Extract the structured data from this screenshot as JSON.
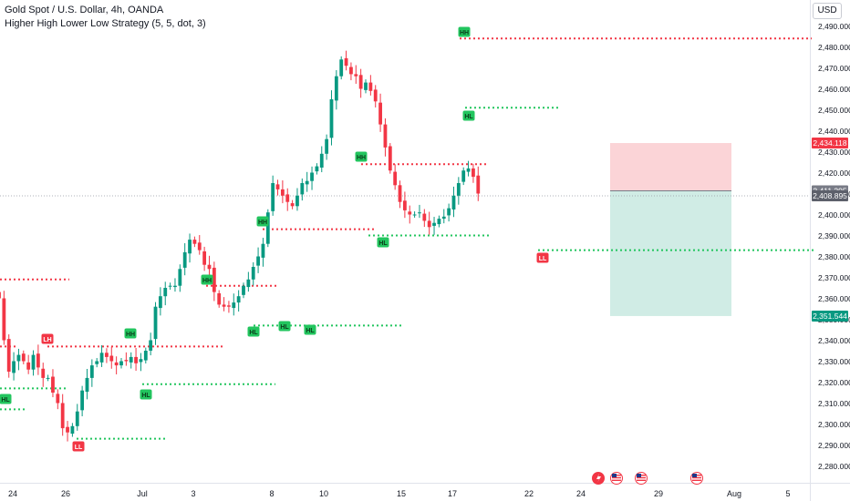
{
  "header": {
    "symbol_title": "Gold Spot / U.S. Dollar, 4h, OANDA",
    "indicator_title": "Higher High Lower Low Strategy (5, 5, dot, 3)",
    "currency": "USD"
  },
  "colors": {
    "up": "#089981",
    "down": "#f23645",
    "stop_zone": "#f9c5ca",
    "target_zone": "#c8e9e1",
    "axis_text": "#131722"
  },
  "event_icons": [
    "lightning-icon",
    "us-flag-icon",
    "us-flag-icon",
    "us-flag-icon"
  ],
  "chart_data": {
    "type": "candlestick",
    "x_ticks": [
      "24",
      "26",
      "Jul",
      "3",
      "8",
      "10",
      "15",
      "17",
      "22",
      "24",
      "29",
      "Aug",
      "5"
    ],
    "y_ticks": [
      "2,490.000",
      "2,480.000",
      "2,470.000",
      "2,460.000",
      "2,450.000",
      "2,440.000",
      "2,430.000",
      "2,420.000",
      "2,410.000",
      "2,400.000",
      "2,390.000",
      "2,380.000",
      "2,370.000",
      "2,360.000",
      "2,350.000",
      "2,340.000",
      "2,330.000",
      "2,320.000",
      "2,310.000",
      "2,300.000",
      "2,290.000",
      "2,280.000"
    ],
    "ylim": [
      2276,
      2497
    ],
    "close_series": [
      2360,
      2340,
      2325,
      2330,
      2333,
      2330,
      2326,
      2333,
      2327,
      2322,
      2322,
      2315,
      2310,
      2298,
      2296,
      2299,
      2306,
      2316,
      2322,
      2328,
      2330,
      2334,
      2332,
      2330,
      2328,
      2330,
      2330,
      2332,
      2329,
      2331,
      2335,
      2340,
      2356,
      2361,
      2365,
      2366,
      2366,
      2374,
      2382,
      2388,
      2386,
      2383,
      2376,
      2374,
      2363,
      2357,
      2356,
      2356,
      2358,
      2361,
      2366,
      2369,
      2375,
      2380,
      2386,
      2401,
      2415,
      2412,
      2409,
      2406,
      2404,
      2409,
      2415,
      2416,
      2420,
      2423,
      2429,
      2436,
      2455,
      2466,
      2474,
      2471,
      2467,
      2466,
      2460,
      2463,
      2459,
      2454,
      2443,
      2432,
      2421,
      2414,
      2406,
      2402,
      2400,
      2400,
      2401,
      2397,
      2394,
      2396,
      2398,
      2399,
      2403,
      2409,
      2415,
      2421,
      2422,
      2418,
      2410
    ],
    "candle_count_shown": 99,
    "last_price_label": "2,408.895",
    "labels": [
      {
        "text": "LH",
        "kind": "high",
        "price": 2340
      },
      {
        "text": "HL",
        "kind": "low",
        "price": 2309
      },
      {
        "text": "LL",
        "kind": "low",
        "price": 2290
      },
      {
        "text": "HH",
        "kind": "high",
        "price": 2340
      },
      {
        "text": "HL",
        "kind": "low",
        "price": 2314
      },
      {
        "text": "HH",
        "kind": "high",
        "price": 2366
      },
      {
        "text": "HH",
        "kind": "high",
        "price": 2391
      },
      {
        "text": "HL",
        "kind": "low",
        "price": 2342
      },
      {
        "text": "HL",
        "kind": "low",
        "price": 2344
      },
      {
        "text": "HL",
        "kind": "low",
        "price": 2342
      },
      {
        "text": "HH",
        "kind": "high",
        "price": 2424
      },
      {
        "text": "HL",
        "kind": "low",
        "price": 2389
      },
      {
        "text": "HH",
        "kind": "high",
        "price": 2485
      },
      {
        "text": "HL",
        "kind": "low",
        "price": 2448
      },
      {
        "text": "LL",
        "kind": "low",
        "price": 2382
      }
    ],
    "levels": [
      {
        "price": 2369,
        "color": "red"
      },
      {
        "price": 2337,
        "color": "red"
      },
      {
        "price": 2337,
        "color": "red"
      },
      {
        "price": 2366,
        "color": "red"
      },
      {
        "price": 2393,
        "color": "red"
      },
      {
        "price": 2424,
        "color": "red"
      },
      {
        "price": 2484,
        "color": "red"
      },
      {
        "price": 2317,
        "color": "green"
      },
      {
        "price": 2307,
        "color": "green"
      },
      {
        "price": 2293,
        "color": "green"
      },
      {
        "price": 2319,
        "color": "green"
      },
      {
        "price": 2347,
        "color": "green"
      },
      {
        "price": 2390,
        "color": "green"
      },
      {
        "price": 2451,
        "color": "green"
      },
      {
        "price": 2383,
        "color": "green"
      }
    ],
    "position": {
      "stop_label": "2,434.118",
      "entry_label": "2,411.295",
      "target_label": "2,351.544",
      "stop": 2434.118,
      "entry": 2411.295,
      "target": 2351.544
    }
  }
}
